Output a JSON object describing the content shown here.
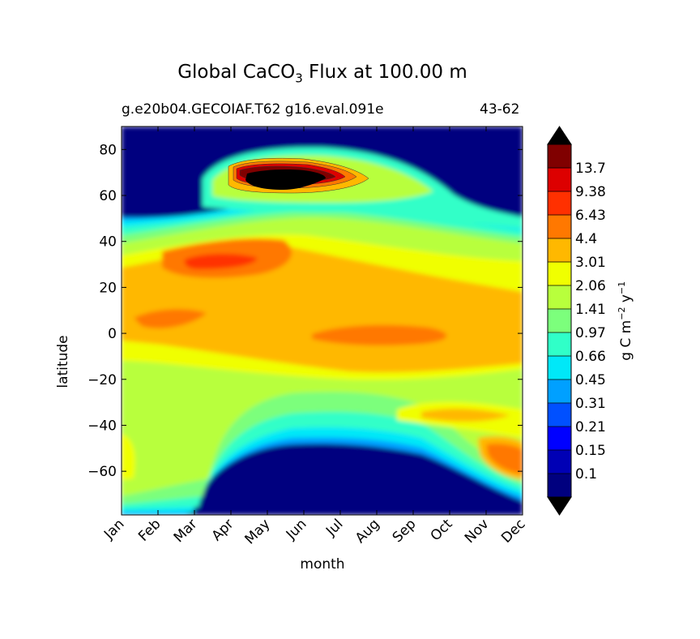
{
  "chart_data": {
    "type": "heatmap",
    "title_prefix": "Global CaCO",
    "title_subscript": "3",
    "title_suffix": "Flux at 100.00 m",
    "subtitle_left": "g.e20b04.GECOIAF.T62 g16.eval.091e",
    "subtitle_right": "43-62",
    "xlabel": "month",
    "ylabel": "latitude",
    "colorbar_label_prefix": "g C m",
    "colorbar_label_exp1": "−2",
    "colorbar_label_mid": " y",
    "colorbar_label_exp2": "−1",
    "x_categories": [
      "Jan",
      "Feb",
      "Mar",
      "Apr",
      "May",
      "Jun",
      "Jul",
      "Aug",
      "Sep",
      "Oct",
      "Nov",
      "Dec"
    ],
    "y_ticks": [
      80,
      60,
      40,
      20,
      0,
      -20,
      -40,
      -60
    ],
    "ylim": [
      -79,
      90
    ],
    "contour_levels": [
      "0.1",
      "0.15",
      "0.21",
      "0.31",
      "0.45",
      "0.66",
      "0.97",
      "1.41",
      "2.06",
      "3.01",
      "4.4",
      "6.43",
      "9.38",
      "13.7"
    ],
    "colors": {
      "under": "#00007f",
      "bands": [
        "#0000b5",
        "#0000ff",
        "#0050ff",
        "#00a0ff",
        "#00e8f8",
        "#30ffc8",
        "#7cff7c",
        "#b8ff3c",
        "#f0ff00",
        "#ffb800",
        "#ff7800",
        "#ff3000",
        "#dd0000",
        "#800000"
      ],
      "over": "#000000"
    }
  }
}
